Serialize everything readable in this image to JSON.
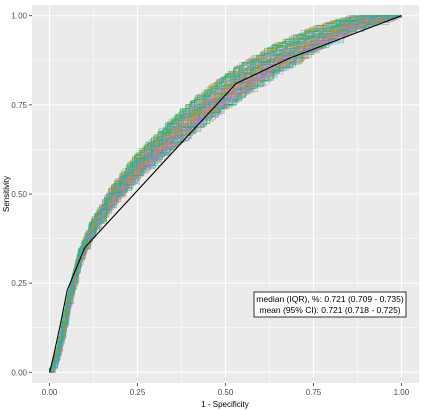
{
  "chart_data": {
    "type": "line",
    "title": "",
    "xlabel": "1 - Specificity",
    "ylabel": "Sensitivity",
    "xlim": [
      -0.05,
      1.05
    ],
    "ylim": [
      -0.03,
      1.03
    ],
    "x_ticks": [
      0.0,
      0.25,
      0.5,
      0.75,
      1.0
    ],
    "x_tick_labels": [
      "0.00",
      "0.25",
      "0.50",
      "0.75",
      "1.00"
    ],
    "y_ticks": [
      0.0,
      0.25,
      0.5,
      0.75,
      1.0
    ],
    "y_tick_labels": [
      "0.00",
      "0.25",
      "0.50",
      "0.75",
      "1.00"
    ],
    "grid": true,
    "legend": "none",
    "panel_background": "#ebebeb",
    "grid_color": "#ffffff",
    "bootstrap_curves": {
      "count": 100,
      "palette": [
        "#f8766d",
        "#e58700",
        "#c99800",
        "#a3a500",
        "#6bb100",
        "#00ba38",
        "#00bf7d",
        "#00c0af",
        "#00bcd8",
        "#00b0f6",
        "#619cff",
        "#b983ff",
        "#e76bf3",
        "#fd61d1",
        "#ff67a4"
      ],
      "mean_curve": [
        [
          0.0,
          0.0
        ],
        [
          0.02,
          0.06
        ],
        [
          0.05,
          0.2
        ],
        [
          0.08,
          0.32
        ],
        [
          0.12,
          0.41
        ],
        [
          0.18,
          0.5
        ],
        [
          0.25,
          0.58
        ],
        [
          0.35,
          0.67
        ],
        [
          0.45,
          0.75
        ],
        [
          0.55,
          0.82
        ],
        [
          0.65,
          0.88
        ],
        [
          0.75,
          0.93
        ],
        [
          0.85,
          0.97
        ],
        [
          0.92,
          0.985
        ],
        [
          1.0,
          1.0
        ]
      ]
    },
    "series": [
      {
        "color": "#000000",
        "x": [
          0.0,
          0.01,
          0.03,
          0.05,
          0.1,
          0.53,
          0.68,
          1.0
        ],
        "y": [
          0.0,
          0.04,
          0.13,
          0.23,
          0.35,
          0.81,
          0.88,
          1.0
        ]
      }
    ],
    "annotation": {
      "line1": "median (IQR), %: 0.721 (0.709 - 0.735)",
      "line2": "mean (95% CI): 0.721 (0.718 - 0.725)",
      "position": "bottom-right"
    }
  }
}
